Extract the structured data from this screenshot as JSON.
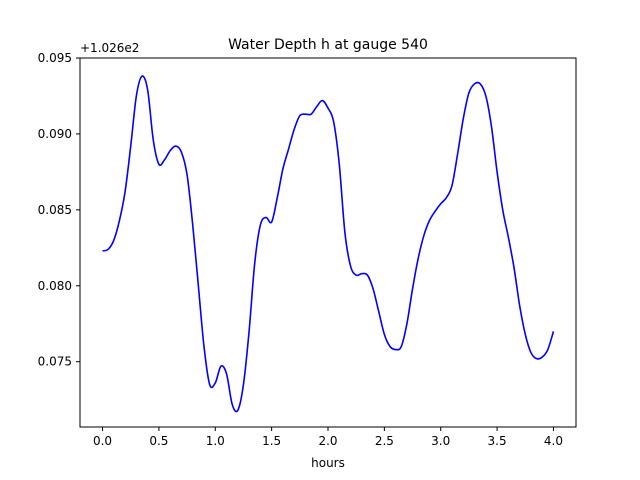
{
  "chart_data": {
    "type": "line",
    "title": "Water Depth h at gauge 540",
    "xlabel": "hours",
    "ylabel": "",
    "y_offset_label": "+1.026e2",
    "y_offset": 102.6,
    "xlim": [
      -0.2,
      4.2
    ],
    "ylim": [
      0.0707,
      0.095
    ],
    "xticks": [
      0.0,
      0.5,
      1.0,
      1.5,
      2.0,
      2.5,
      3.0,
      3.5,
      4.0
    ],
    "xtick_labels": [
      "0.0",
      "0.5",
      "1.0",
      "1.5",
      "2.0",
      "2.5",
      "3.0",
      "3.5",
      "4.0"
    ],
    "yticks": [
      0.075,
      0.08,
      0.085,
      0.09,
      0.095
    ],
    "ytick_labels": [
      "0.075",
      "0.080",
      "0.085",
      "0.090",
      "0.095"
    ],
    "grid": false,
    "series": [
      {
        "color": "#0000ff",
        "x": [
          0.0,
          0.05,
          0.1,
          0.15,
          0.2,
          0.25,
          0.3,
          0.35,
          0.4,
          0.45,
          0.5,
          0.55,
          0.6,
          0.65,
          0.7,
          0.75,
          0.8,
          0.85,
          0.9,
          0.95,
          1.0,
          1.05,
          1.1,
          1.15,
          1.2,
          1.25,
          1.3,
          1.35,
          1.4,
          1.45,
          1.5,
          1.55,
          1.6,
          1.65,
          1.7,
          1.75,
          1.8,
          1.85,
          1.9,
          1.95,
          2.0,
          2.05,
          2.1,
          2.15,
          2.2,
          2.25,
          2.3,
          2.35,
          2.4,
          2.45,
          2.5,
          2.55,
          2.6,
          2.65,
          2.7,
          2.75,
          2.8,
          2.85,
          2.9,
          2.95,
          3.0,
          3.05,
          3.1,
          3.15,
          3.2,
          3.25,
          3.3,
          3.35,
          3.4,
          3.45,
          3.5,
          3.55,
          3.6,
          3.65,
          3.7,
          3.75,
          3.8,
          3.85,
          3.9,
          3.95,
          4.0
        ],
        "y": [
          0.0823,
          0.0824,
          0.083,
          0.0843,
          0.0862,
          0.0892,
          0.0925,
          0.0938,
          0.0929,
          0.0896,
          0.088,
          0.0883,
          0.0889,
          0.0892,
          0.0888,
          0.0873,
          0.084,
          0.08,
          0.076,
          0.0735,
          0.0736,
          0.0747,
          0.0742,
          0.0722,
          0.0718,
          0.0735,
          0.077,
          0.0815,
          0.084,
          0.0845,
          0.0842,
          0.0858,
          0.0877,
          0.089,
          0.0903,
          0.0912,
          0.0913,
          0.0913,
          0.0918,
          0.0922,
          0.0917,
          0.0908,
          0.088,
          0.0835,
          0.0813,
          0.0807,
          0.0808,
          0.0807,
          0.0798,
          0.0783,
          0.0768,
          0.076,
          0.0758,
          0.076,
          0.0775,
          0.0798,
          0.0818,
          0.0833,
          0.0843,
          0.0849,
          0.0854,
          0.0858,
          0.0866,
          0.0887,
          0.091,
          0.0927,
          0.0933,
          0.0933,
          0.0925,
          0.0905,
          0.0875,
          0.085,
          0.0832,
          0.0812,
          0.0787,
          0.0768,
          0.0756,
          0.0752,
          0.0753,
          0.0758,
          0.077
        ]
      }
    ]
  }
}
